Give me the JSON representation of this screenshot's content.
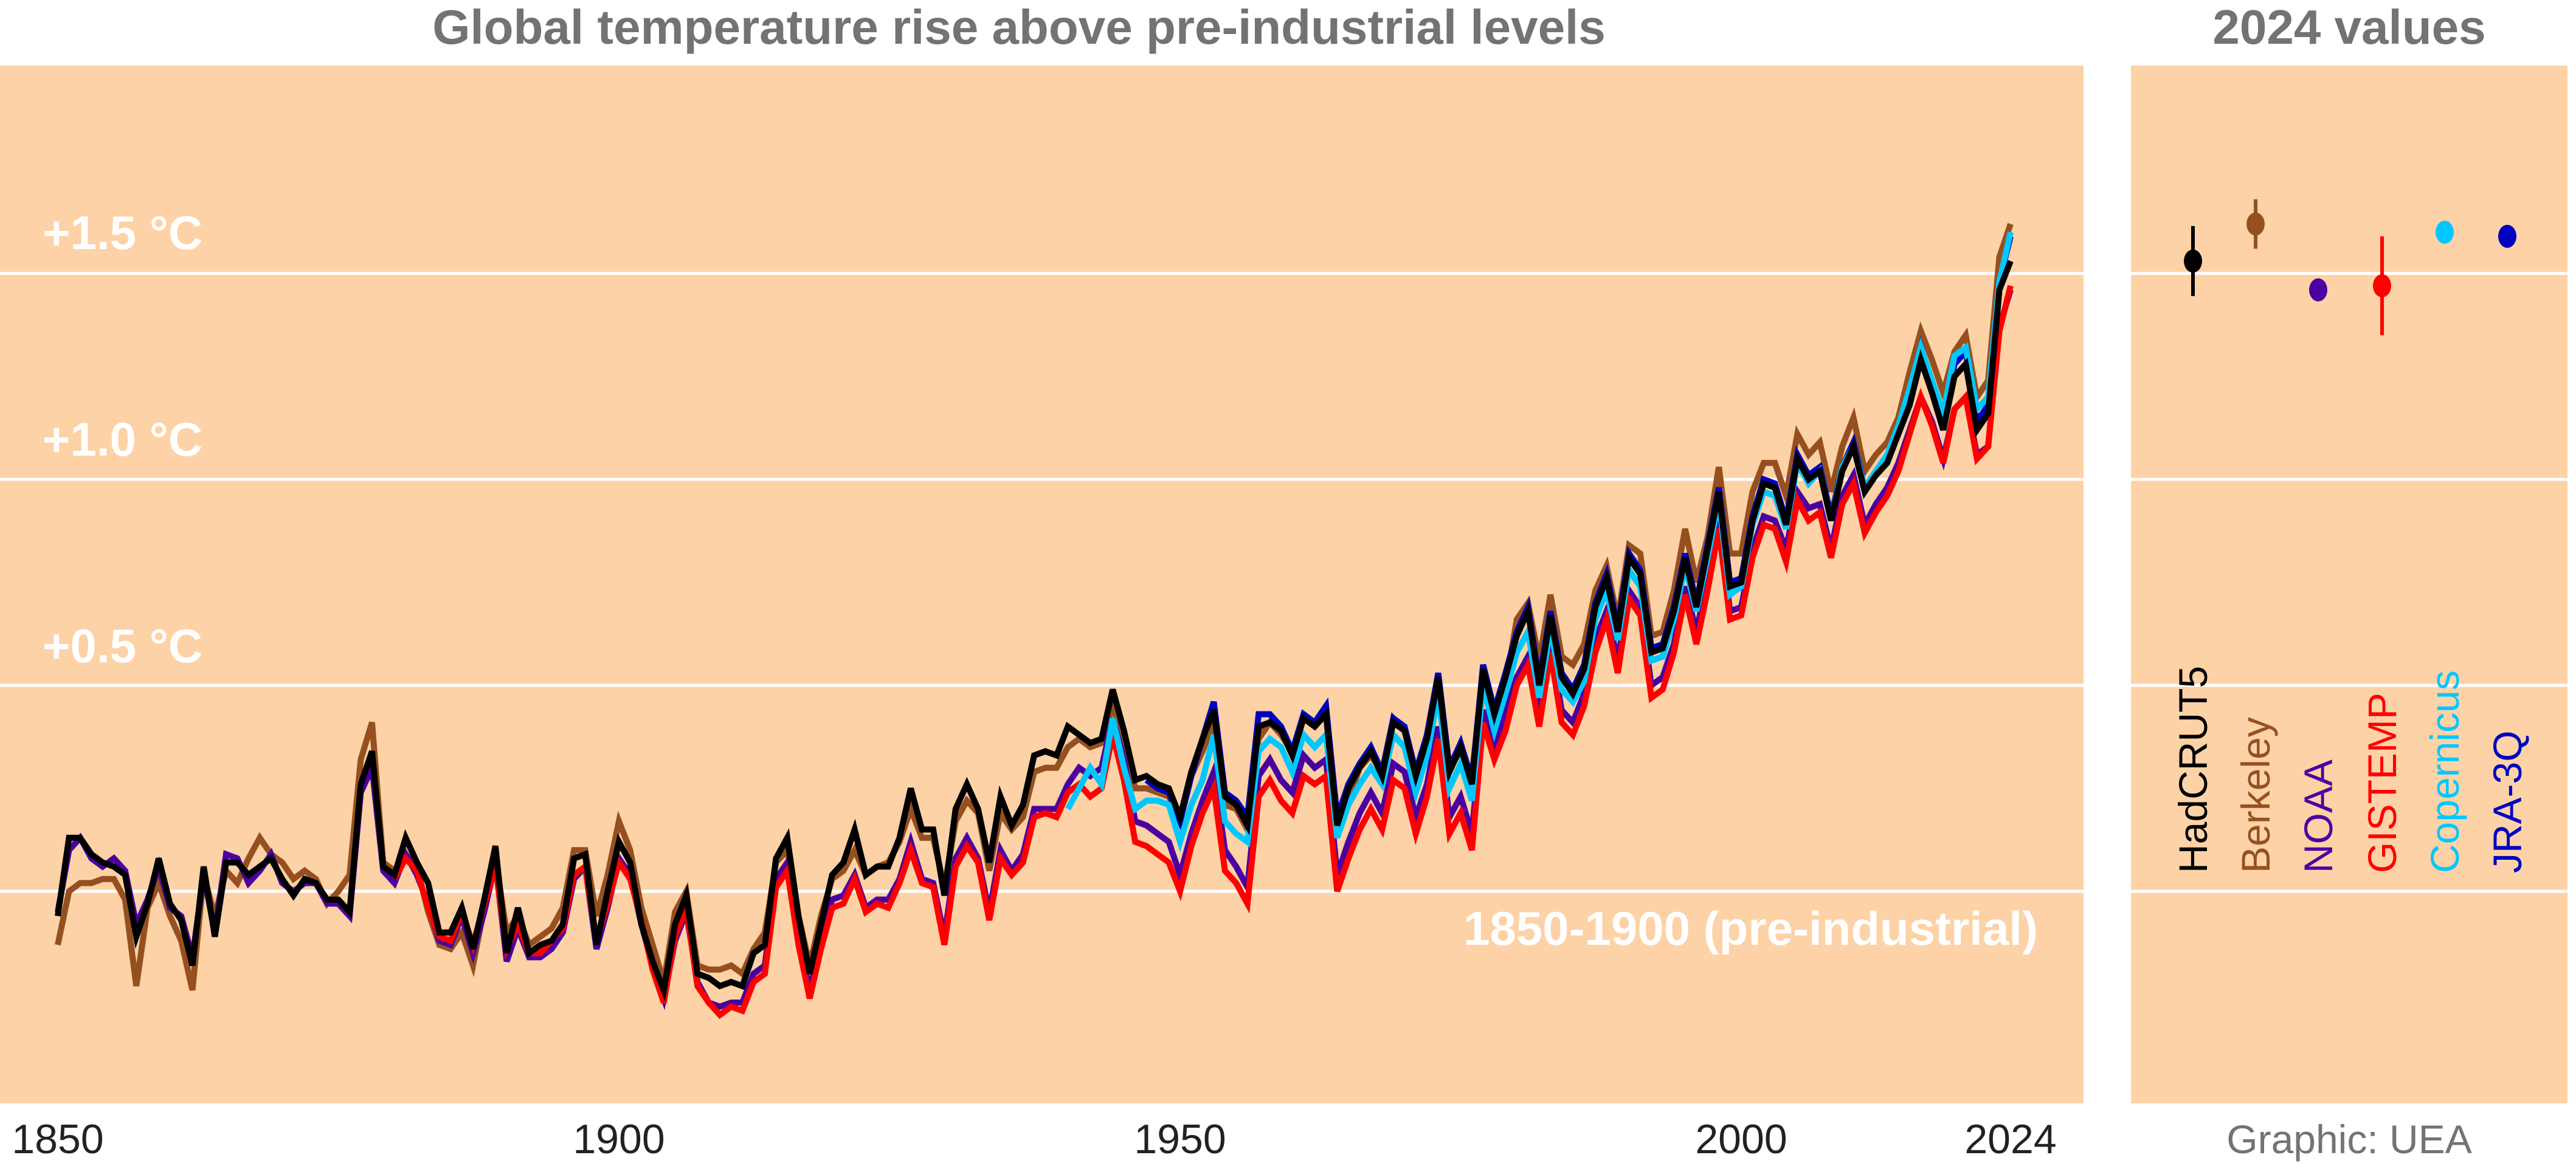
{
  "chart_data": [
    {
      "type": "line",
      "title": "Global temperature rise above pre-industrial levels",
      "xlabel": "",
      "ylabel": "",
      "xlim": [
        1845,
        2030
      ],
      "ylim": [
        -0.51,
        2.0
      ],
      "x_ticks": [
        "1850",
        "1900",
        "1950",
        "2000",
        "2024"
      ],
      "y_gridlines": [
        0,
        0.5,
        1.0,
        1.5
      ],
      "y_labels": [
        "+0.5 °C",
        "+1.0 °C",
        "+1.5 °C"
      ],
      "baseline_label": "1850-1900 (pre-industrial)",
      "grid": true,
      "background": "#FDD2A6",
      "series": [
        {
          "name": "Berkeley",
          "color": "#965020",
          "start_year": 1850,
          "values": [
            -0.13,
            0.0,
            0.02,
            0.02,
            0.03,
            0.03,
            -0.02,
            -0.23,
            -0.04,
            0.02,
            -0.06,
            -0.12,
            -0.24,
            0.04,
            -0.06,
            0.05,
            0.02,
            0.08,
            0.13,
            0.09,
            0.07,
            0.03,
            0.05,
            0.03,
            -0.03,
            0.0,
            0.04,
            0.32,
            0.41,
            0.07,
            0.05,
            0.09,
            0.06,
            -0.05,
            -0.13,
            -0.14,
            -0.1,
            -0.18,
            -0.04,
            0.08,
            -0.1,
            -0.06,
            -0.13,
            -0.11,
            -0.09,
            -0.04,
            0.1,
            0.1,
            -0.06,
            0.04,
            0.17,
            0.1,
            -0.04,
            -0.13,
            -0.22,
            -0.05,
            0.0,
            -0.18,
            -0.19,
            -0.19,
            -0.18,
            -0.2,
            -0.14,
            -0.1,
            0.07,
            0.1,
            -0.06,
            -0.18,
            -0.06,
            0.03,
            0.05,
            0.1,
            0.04,
            0.06,
            0.07,
            0.12,
            0.2,
            0.13,
            0.13,
            0.01,
            0.17,
            0.22,
            0.19,
            0.05,
            0.19,
            0.15,
            0.18,
            0.29,
            0.3,
            0.3,
            0.35,
            0.37,
            0.35,
            0.36,
            0.45,
            0.37,
            0.25,
            0.25,
            0.24,
            0.23,
            0.17,
            0.28,
            0.34,
            0.41,
            0.21,
            0.2,
            0.15,
            0.37,
            0.41,
            0.38,
            0.34,
            0.42,
            0.41,
            0.43,
            0.16,
            0.22,
            0.3,
            0.33,
            0.29,
            0.42,
            0.39,
            0.29,
            0.36,
            0.5,
            0.3,
            0.34,
            0.28,
            0.53,
            0.44,
            0.5,
            0.66,
            0.7,
            0.56,
            0.72,
            0.57,
            0.55,
            0.6,
            0.73,
            0.79,
            0.66,
            0.84,
            0.82,
            0.62,
            0.63,
            0.73,
            0.88,
            0.75,
            0.86,
            1.03,
            0.82,
            0.82,
            0.97,
            1.04,
            1.04,
            0.96,
            1.11,
            1.06,
            1.09,
            0.97,
            1.08,
            1.15,
            1.02,
            1.06,
            1.09,
            1.15,
            1.26,
            1.36,
            1.29,
            1.21,
            1.31,
            1.35,
            1.2,
            1.24,
            1.54,
            1.62
          ]
        },
        {
          "name": "JRA-3Q",
          "color": "#0000C0",
          "start_year": 1947,
          "values": [
            0.27,
            0.25,
            0.24,
            0.17,
            0.28,
            0.37,
            0.46,
            0.24,
            0.22,
            0.18,
            0.43,
            0.43,
            0.4,
            0.34,
            0.43,
            0.41,
            0.45,
            0.18,
            0.26,
            0.31,
            0.35,
            0.29,
            0.42,
            0.4,
            0.29,
            0.38,
            0.53,
            0.3,
            0.36,
            0.27,
            0.55,
            0.44,
            0.53,
            0.63,
            0.69,
            0.51,
            0.68,
            0.53,
            0.49,
            0.55,
            0.7,
            0.77,
            0.64,
            0.82,
            0.78,
            0.59,
            0.6,
            0.69,
            0.82,
            0.7,
            0.84,
            0.98,
            0.75,
            0.76,
            0.91,
            1.0,
            0.99,
            0.9,
            1.06,
            1.01,
            1.03,
            0.91,
            1.03,
            1.09,
            0.98,
            1.02,
            1.05,
            1.12,
            1.21,
            1.32,
            1.23,
            1.14,
            1.28,
            1.31,
            1.14,
            1.18,
            1.48,
            1.59
          ]
        },
        {
          "name": "NOAA",
          "color": "#4B00A0",
          "start_year": 1850,
          "values": [
            -0.05,
            0.1,
            0.13,
            0.08,
            0.06,
            0.08,
            0.05,
            -0.08,
            -0.02,
            0.06,
            -0.04,
            -0.06,
            -0.16,
            0.04,
            -0.1,
            0.09,
            0.08,
            0.02,
            0.05,
            0.09,
            0.02,
            0.0,
            0.02,
            0.02,
            -0.03,
            -0.03,
            -0.06,
            0.24,
            0.3,
            0.05,
            0.02,
            0.09,
            0.04,
            -0.03,
            -0.12,
            -0.13,
            -0.06,
            -0.15,
            -0.05,
            0.07,
            -0.17,
            -0.09,
            -0.16,
            -0.16,
            -0.14,
            -0.1,
            0.03,
            0.06,
            -0.14,
            -0.04,
            0.08,
            0.04,
            -0.08,
            -0.18,
            -0.26,
            -0.12,
            -0.05,
            -0.22,
            -0.27,
            -0.28,
            -0.27,
            -0.27,
            -0.2,
            -0.18,
            0.03,
            0.07,
            -0.12,
            -0.24,
            -0.12,
            -0.02,
            -0.01,
            0.04,
            -0.04,
            -0.02,
            -0.02,
            0.03,
            0.12,
            0.03,
            0.02,
            -0.11,
            0.08,
            0.13,
            0.08,
            -0.05,
            0.1,
            0.05,
            0.09,
            0.2,
            0.2,
            0.2,
            0.26,
            0.3,
            0.28,
            0.3,
            0.42,
            0.32,
            0.17,
            0.16,
            0.14,
            0.12,
            0.04,
            0.14,
            0.22,
            0.29,
            0.1,
            0.06,
            0.01,
            0.28,
            0.32,
            0.27,
            0.24,
            0.33,
            0.3,
            0.32,
            0.04,
            0.12,
            0.19,
            0.24,
            0.19,
            0.31,
            0.29,
            0.18,
            0.26,
            0.4,
            0.18,
            0.23,
            0.14,
            0.44,
            0.36,
            0.43,
            0.52,
            0.57,
            0.43,
            0.6,
            0.44,
            0.41,
            0.48,
            0.61,
            0.68,
            0.56,
            0.73,
            0.69,
            0.5,
            0.52,
            0.6,
            0.74,
            0.63,
            0.76,
            0.9,
            0.68,
            0.69,
            0.83,
            0.91,
            0.9,
            0.83,
            0.97,
            0.93,
            0.94,
            0.83,
            0.96,
            1.01,
            0.89,
            0.94,
            0.98,
            1.04,
            1.12,
            1.2,
            1.14,
            1.05,
            1.17,
            1.2,
            1.06,
            1.08,
            1.37,
            1.46
          ]
        },
        {
          "name": "GISTEMP",
          "color": "#FF0000",
          "start_year": 1880,
          "values": [
            0.03,
            0.08,
            0.05,
            -0.04,
            -0.11,
            -0.12,
            -0.05,
            -0.13,
            -0.03,
            0.06,
            -0.14,
            -0.08,
            -0.15,
            -0.15,
            -0.12,
            -0.09,
            0.04,
            0.06,
            -0.12,
            -0.03,
            0.07,
            0.03,
            -0.07,
            -0.19,
            -0.27,
            -0.11,
            -0.04,
            -0.23,
            -0.27,
            -0.3,
            -0.28,
            -0.29,
            -0.22,
            -0.2,
            0.01,
            0.05,
            -0.13,
            -0.26,
            -0.14,
            -0.04,
            -0.03,
            0.03,
            -0.05,
            -0.03,
            -0.04,
            0.02,
            0.1,
            0.02,
            0.01,
            -0.13,
            0.06,
            0.11,
            0.07,
            -0.07,
            0.08,
            0.04,
            0.07,
            0.18,
            0.19,
            0.18,
            0.24,
            0.26,
            0.23,
            0.25,
            0.38,
            0.27,
            0.12,
            0.11,
            0.09,
            0.07,
            0.0,
            0.11,
            0.19,
            0.25,
            0.05,
            0.02,
            -0.03,
            0.23,
            0.27,
            0.22,
            0.19,
            0.28,
            0.26,
            0.28,
            0.0,
            0.08,
            0.15,
            0.2,
            0.15,
            0.27,
            0.25,
            0.14,
            0.23,
            0.37,
            0.14,
            0.19,
            0.1,
            0.41,
            0.32,
            0.39,
            0.5,
            0.55,
            0.4,
            0.58,
            0.41,
            0.38,
            0.45,
            0.58,
            0.66,
            0.53,
            0.71,
            0.67,
            0.47,
            0.49,
            0.58,
            0.72,
            0.6,
            0.73,
            0.88,
            0.66,
            0.67,
            0.81,
            0.89,
            0.88,
            0.8,
            0.95,
            0.9,
            0.92,
            0.81,
            0.94,
            0.99,
            0.87,
            0.92,
            0.96,
            1.02,
            1.11,
            1.2,
            1.13,
            1.04,
            1.17,
            1.2,
            1.05,
            1.08,
            1.36,
            1.47
          ]
        },
        {
          "name": "Copernicus",
          "color": "#00C8FF",
          "start_year": 1940,
          "values": [
            0.2,
            0.25,
            0.3,
            0.26,
            0.42,
            0.3,
            0.2,
            0.22,
            0.22,
            0.21,
            0.12,
            0.21,
            0.27,
            0.38,
            0.17,
            0.14,
            0.12,
            0.34,
            0.37,
            0.35,
            0.29,
            0.38,
            0.35,
            0.38,
            0.13,
            0.21,
            0.26,
            0.3,
            0.26,
            0.38,
            0.35,
            0.24,
            0.33,
            0.48,
            0.25,
            0.31,
            0.22,
            0.5,
            0.39,
            0.48,
            0.58,
            0.63,
            0.47,
            0.64,
            0.49,
            0.46,
            0.51,
            0.66,
            0.73,
            0.61,
            0.78,
            0.74,
            0.56,
            0.57,
            0.66,
            0.79,
            0.68,
            0.81,
            0.95,
            0.72,
            0.74,
            0.89,
            0.97,
            0.96,
            0.88,
            1.04,
            0.99,
            1.02,
            0.9,
            1.03,
            1.08,
            0.98,
            1.02,
            1.06,
            1.13,
            1.22,
            1.32,
            1.24,
            1.16,
            1.3,
            1.32,
            1.17,
            1.2,
            1.48,
            1.6
          ]
        },
        {
          "name": "HadCRUT5",
          "color": "#000000",
          "start_year": 1850,
          "values": [
            -0.06,
            0.13,
            0.13,
            0.09,
            0.07,
            0.06,
            0.04,
            -0.11,
            -0.03,
            0.08,
            -0.03,
            -0.07,
            -0.18,
            0.06,
            -0.11,
            0.07,
            0.07,
            0.04,
            0.06,
            0.08,
            0.03,
            -0.01,
            0.03,
            0.02,
            -0.02,
            -0.02,
            -0.05,
            0.26,
            0.34,
            0.06,
            0.04,
            0.13,
            0.07,
            0.02,
            -0.1,
            -0.1,
            -0.04,
            -0.14,
            -0.02,
            0.11,
            -0.15,
            -0.04,
            -0.15,
            -0.13,
            -0.12,
            -0.08,
            0.08,
            0.09,
            -0.13,
            0.0,
            0.12,
            0.07,
            -0.08,
            -0.17,
            -0.24,
            -0.08,
            -0.01,
            -0.2,
            -0.21,
            -0.23,
            -0.22,
            -0.23,
            -0.15,
            -0.13,
            0.08,
            0.13,
            -0.06,
            -0.2,
            -0.08,
            0.04,
            0.07,
            0.15,
            0.04,
            0.06,
            0.06,
            0.13,
            0.25,
            0.15,
            0.15,
            -0.01,
            0.2,
            0.26,
            0.2,
            0.07,
            0.23,
            0.16,
            0.21,
            0.33,
            0.34,
            0.33,
            0.4,
            0.38,
            0.36,
            0.37,
            0.49,
            0.39,
            0.27,
            0.28,
            0.26,
            0.25,
            0.18,
            0.29,
            0.37,
            0.44,
            0.23,
            0.21,
            0.16,
            0.4,
            0.41,
            0.39,
            0.33,
            0.42,
            0.4,
            0.43,
            0.16,
            0.25,
            0.3,
            0.34,
            0.28,
            0.41,
            0.39,
            0.28,
            0.37,
            0.52,
            0.29,
            0.35,
            0.26,
            0.54,
            0.43,
            0.52,
            0.62,
            0.68,
            0.5,
            0.67,
            0.52,
            0.48,
            0.54,
            0.69,
            0.76,
            0.63,
            0.81,
            0.77,
            0.58,
            0.59,
            0.68,
            0.81,
            0.69,
            0.83,
            0.97,
            0.74,
            0.75,
            0.9,
            0.99,
            0.98,
            0.89,
            1.05,
            1.0,
            1.02,
            0.9,
            1.02,
            1.08,
            0.97,
            1.01,
            1.04,
            1.11,
            1.18,
            1.29,
            1.21,
            1.12,
            1.25,
            1.28,
            1.12,
            1.16,
            1.46,
            1.53
          ]
        }
      ]
    },
    {
      "type": "scatter",
      "title": "2024 values",
      "ylim": [
        -0.51,
        2.0
      ],
      "y_gridlines": [
        0,
        0.5,
        1.0,
        1.5
      ],
      "points": [
        {
          "name": "HadCRUT5",
          "color": "#000000",
          "value": 1.53,
          "error": 0.085
        },
        {
          "name": "Berkeley",
          "color": "#965020",
          "value": 1.62,
          "error": 0.06
        },
        {
          "name": "NOAA",
          "color": "#4B00A0",
          "value": 1.46,
          "error": null
        },
        {
          "name": "GISTEMP",
          "color": "#FF0000",
          "value": 1.47,
          "error": 0.12
        },
        {
          "name": "Copernicus",
          "color": "#00C8FF",
          "value": 1.6,
          "error": null
        },
        {
          "name": "JRA-3Q",
          "color": "#0000C0",
          "value": 1.59,
          "error": null
        }
      ]
    }
  ],
  "credit": "Graphic: UEA"
}
